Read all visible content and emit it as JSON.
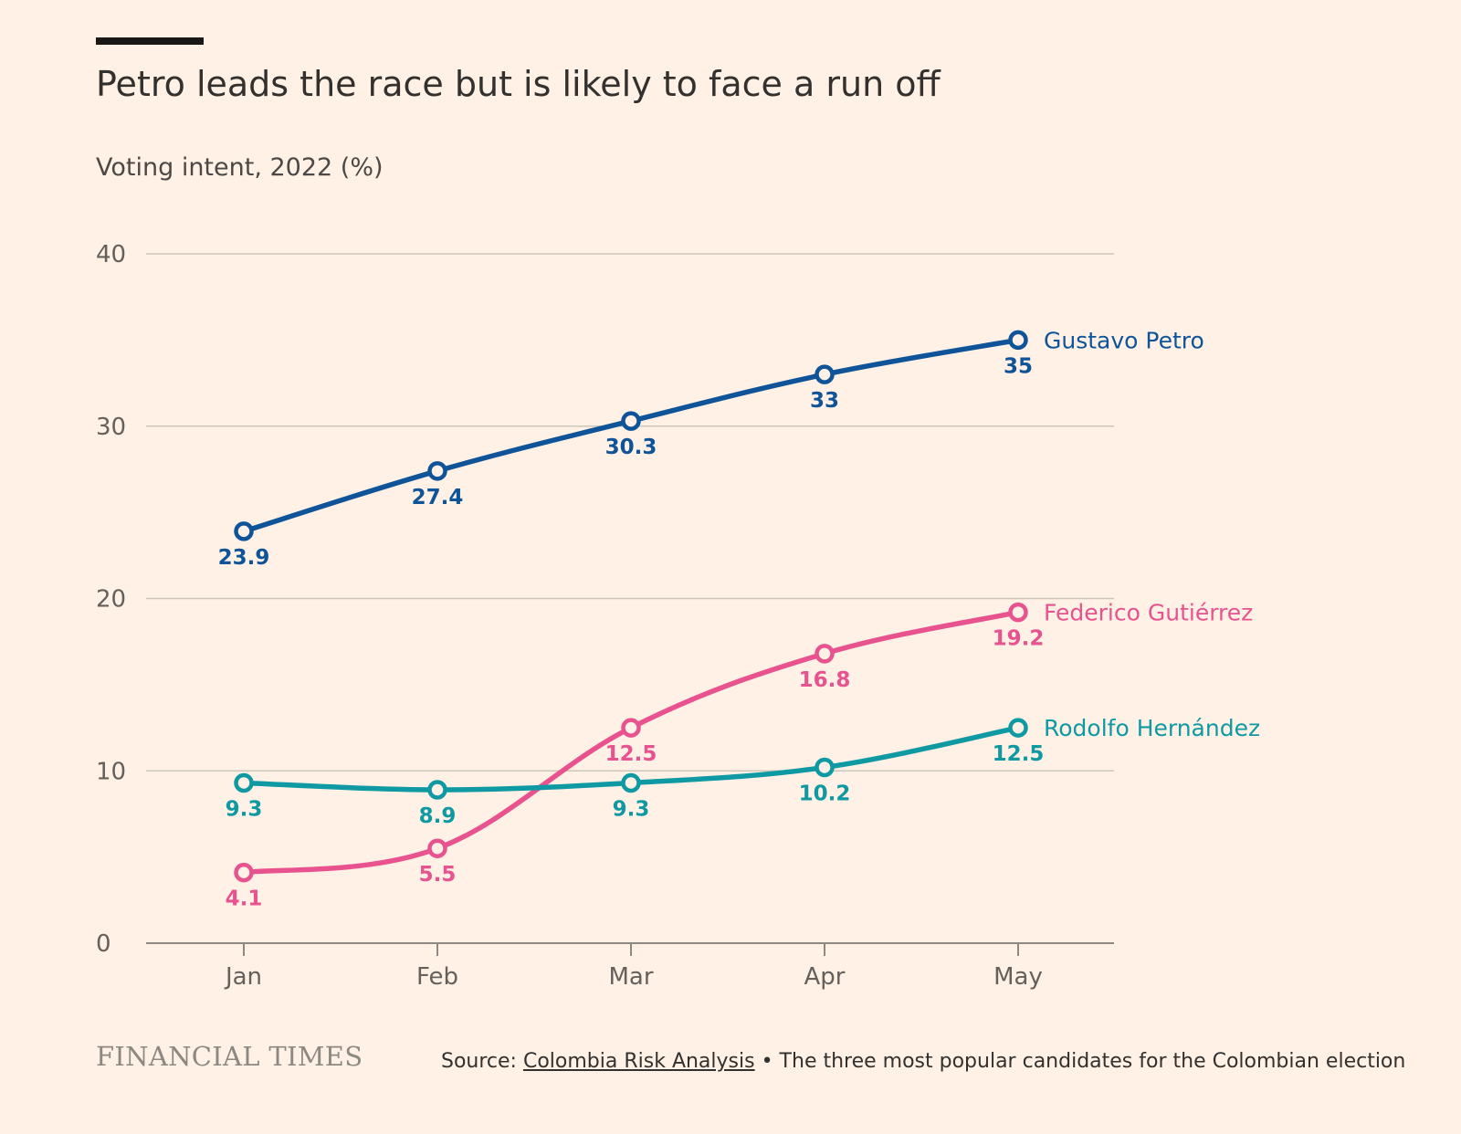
{
  "header": {
    "title": "Petro leads the race but is likely to face a run off",
    "subtitle": "Voting intent, 2022 (%)"
  },
  "footer": {
    "logo_text": "FINANCIAL TIMES",
    "source_prefix": "Source: ",
    "source_link": "Colombia Risk Analysis",
    "note": " • The three most popular candidates for the Colombian election"
  },
  "colors": {
    "background": "#FFF1E5",
    "gridline": "#CEC6B9",
    "axis_text": "#66605C",
    "petro": "#0F5499",
    "gutierrez": "#E8538F",
    "hernandez": "#0F99A3"
  },
  "chart_data": {
    "type": "line",
    "title": "Petro leads the race but is likely to face a run off",
    "ylabel": "Voting intent, 2022 (%)",
    "xlabel": "",
    "categories": [
      "Jan",
      "Feb",
      "Mar",
      "Apr",
      "May"
    ],
    "ylim": [
      0,
      40
    ],
    "yticks": [
      0,
      10,
      20,
      30,
      40
    ],
    "grid": true,
    "legend": "direct labels at line ends (right)",
    "series": [
      {
        "name": "Gustavo Petro",
        "color": "#0F5499",
        "values": [
          23.9,
          27.4,
          30.3,
          33,
          35
        ],
        "labels": [
          "23.9",
          "27.4",
          "30.3",
          "33",
          "35"
        ]
      },
      {
        "name": "Federico Gutiérrez",
        "color": "#E8538F",
        "values": [
          4.1,
          5.5,
          12.5,
          16.8,
          19.2
        ],
        "labels": [
          "4.1",
          "5.5",
          "12.5",
          "16.8",
          "19.2"
        ]
      },
      {
        "name": "Rodolfo Hernández",
        "color": "#0F99A3",
        "values": [
          9.3,
          8.9,
          9.3,
          10.2,
          12.5
        ],
        "labels": [
          "9.3",
          "8.9",
          "9.3",
          "10.2",
          "12.5"
        ]
      }
    ]
  }
}
